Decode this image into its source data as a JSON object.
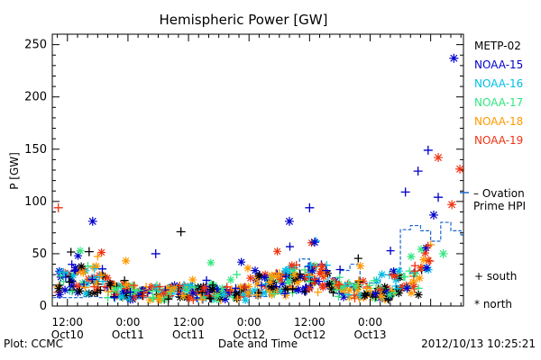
{
  "chart_data": {
    "type": "scatter",
    "title": "Hemispheric Power [GW]",
    "ylabel": "P [GW]",
    "xlabel": "Date and Time",
    "ylim": [
      0,
      260
    ],
    "yticks": [
      0,
      50,
      100,
      150,
      200,
      250
    ],
    "xlim_hours": [
      -3,
      78.5
    ],
    "xticks": [
      {
        "hour": 0,
        "top": "12:00",
        "bottom": "Oct10"
      },
      {
        "hour": 12,
        "top": "0:00",
        "bottom": "Oct11"
      },
      {
        "hour": 24,
        "top": "12:00",
        "bottom": "Oct11"
      },
      {
        "hour": 36,
        "top": "0:00",
        "bottom": "Oct12"
      },
      {
        "hour": 48,
        "top": "12:00",
        "bottom": "Oct12"
      },
      {
        "hour": 60,
        "top": "0:00",
        "bottom": "Oct13"
      }
    ],
    "legend_position": "right",
    "series": [
      {
        "name": "METP-02",
        "color": "#000000"
      },
      {
        "name": "NOAA-15",
        "color": "#0000cc"
      },
      {
        "name": "NOAA-16",
        "color": "#00bfe6"
      },
      {
        "name": "NOAA-17",
        "color": "#33e680"
      },
      {
        "name": "NOAA-18",
        "color": "#ff9900"
      },
      {
        "name": "NOAA-19",
        "color": "#ee3311"
      }
    ],
    "ovation": {
      "label_1": "– Ovation",
      "label_2": "Prime HPI",
      "color": "#1a66cc"
    },
    "markers": {
      "south": "+ south",
      "north": "* north"
    },
    "highlights": [
      {
        "series": "NOAA-15",
        "hemi": "north",
        "hour": 76.6,
        "value": 237
      },
      {
        "series": "NOAA-15",
        "hemi": "south",
        "hour": 71.5,
        "value": 149
      },
      {
        "series": "NOAA-19",
        "hemi": "north",
        "hour": 73.5,
        "value": 142
      },
      {
        "series": "NOAA-15",
        "hemi": "south",
        "hour": 69.5,
        "value": 129
      },
      {
        "series": "NOAA-19",
        "hemi": "north",
        "hour": 77.8,
        "value": 131
      },
      {
        "series": "NOAA-15",
        "hemi": "south",
        "hour": 67.0,
        "value": 109
      },
      {
        "series": "NOAA-15",
        "hemi": "south",
        "hour": 73.5,
        "value": 104
      },
      {
        "series": "NOAA-19",
        "hemi": "north",
        "hour": 76.2,
        "value": 97
      },
      {
        "series": "NOAA-19",
        "hemi": "south",
        "hour": -1.8,
        "value": 94
      },
      {
        "series": "NOAA-15",
        "hemi": "south",
        "hour": 48.0,
        "value": 94
      },
      {
        "series": "NOAA-15",
        "hemi": "north",
        "hour": 72.6,
        "value": 87
      },
      {
        "series": "NOAA-15",
        "hemi": "north",
        "hour": 5.0,
        "value": 81
      },
      {
        "series": "NOAA-15",
        "hemi": "north",
        "hour": 44.0,
        "value": 81
      },
      {
        "series": "METP-02",
        "hemi": "south",
        "hour": 22.5,
        "value": 71
      },
      {
        "series": "NOAA-15",
        "hemi": "north",
        "hour": 49.0,
        "value": 61
      },
      {
        "series": "METP-02",
        "hemi": "south",
        "hour": 4.3,
        "value": 52
      },
      {
        "series": "NOAA-15",
        "hemi": "south",
        "hour": 17.5,
        "value": 50
      },
      {
        "series": "NOAA-17",
        "hemi": "north",
        "hour": 74.5,
        "value": 50
      }
    ]
  },
  "footer": {
    "plot_credit": "Plot: CCMC",
    "timestamp": "2012/10/13 10:25:21"
  }
}
